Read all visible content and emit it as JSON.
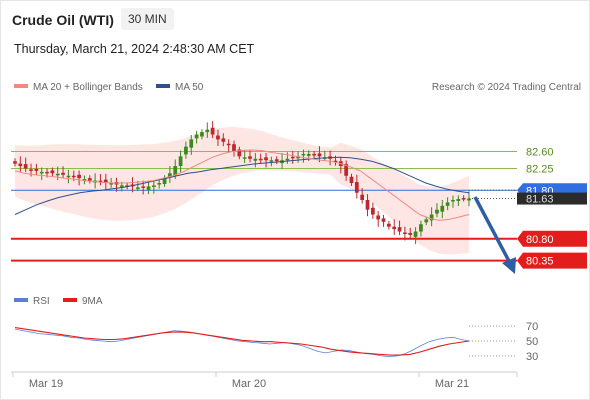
{
  "header": {
    "instrument": "Crude Oil (WTI)",
    "timeframe": "30 MIN",
    "datetime": "Thursday, March 21, 2024 2:48:30 AM CET"
  },
  "legend": {
    "ma20_label": "MA 20 + Bollinger Bands",
    "ma50_label": "MA 50",
    "credit": "Research © 2024 Trading Central",
    "rsi_label": "RSI",
    "ma9_label": "9MA"
  },
  "colors": {
    "ma20": "#f08a80",
    "ma50": "#2f4f8f",
    "bands_fill": "#fde3e1",
    "resistance": "#8abf4a",
    "current": "#2f6fe0",
    "support": "#e31c1c",
    "arrow": "#2e5fa3",
    "rsi": "#5b7fd6",
    "rsi_ma": "#e31c1c",
    "candle_up": "#3a8a1e",
    "candle_down": "#c0262b"
  },
  "chart_data": {
    "type": "candlestick",
    "x_labels": [
      "Mar 19",
      "Mar 20",
      "Mar 21"
    ],
    "y_range": [
      79.6,
      83.6
    ],
    "levels": [
      {
        "value": 82.6,
        "label": "82.60",
        "kind": "resistance"
      },
      {
        "value": 82.25,
        "label": "82.25",
        "kind": "resistance"
      },
      {
        "value": 81.8,
        "label": "81.80",
        "kind": "current"
      },
      {
        "value": 81.63,
        "label": "81.63",
        "kind": "last"
      },
      {
        "value": 80.8,
        "label": "80.80",
        "kind": "support"
      },
      {
        "value": 80.35,
        "label": "80.35",
        "kind": "support"
      }
    ],
    "closes": [
      82.35,
      82.3,
      82.25,
      82.22,
      82.2,
      82.18,
      82.17,
      82.15,
      82.14,
      82.12,
      82.1,
      82.08,
      82.05,
      82.03,
      82.0,
      82.0,
      81.98,
      81.96,
      81.95,
      81.92,
      81.9,
      81.88,
      81.88,
      81.86,
      81.85,
      81.88,
      81.9,
      81.95,
      82.05,
      82.15,
      82.3,
      82.5,
      82.7,
      82.85,
      82.95,
      83.0,
      83.05,
      82.95,
      82.85,
      82.8,
      82.75,
      82.6,
      82.5,
      82.48,
      82.45,
      82.45,
      82.44,
      82.42,
      82.42,
      82.4,
      82.42,
      82.45,
      82.48,
      82.5,
      82.55,
      82.55,
      82.52,
      82.5,
      82.48,
      82.45,
      82.4,
      82.3,
      82.1,
      81.95,
      81.75,
      81.6,
      81.4,
      81.3,
      81.2,
      81.15,
      81.05,
      81.0,
      80.95,
      80.9,
      80.88,
      80.95,
      81.1,
      81.2,
      81.3,
      81.4,
      81.48,
      81.55,
      81.6,
      81.62,
      81.63,
      81.63
    ],
    "ma20": [
      82.2,
      82.15,
      82.12,
      82.1,
      82.08,
      82.05,
      82.03,
      82.0,
      81.98,
      81.96,
      81.95,
      81.95,
      81.96,
      81.98,
      82.0,
      82.05,
      82.1,
      82.18,
      82.28,
      82.38,
      82.48,
      82.55,
      82.6,
      82.62,
      82.63,
      82.62,
      82.58,
      82.55,
      82.52,
      82.48,
      82.45,
      82.42,
      82.4,
      82.35,
      82.28,
      82.2,
      82.05,
      81.9,
      81.75,
      81.6,
      81.45,
      81.3,
      81.22,
      81.18,
      81.2,
      81.25,
      81.3
    ],
    "ma50": [
      81.3,
      81.4,
      81.5,
      81.58,
      81.65,
      81.7,
      81.75,
      81.78,
      81.8,
      81.83,
      81.86,
      81.9,
      81.95,
      82.0,
      82.05,
      82.1,
      82.15,
      82.18,
      82.22,
      82.25,
      82.28,
      82.31,
      82.34,
      82.36,
      82.38,
      82.4,
      82.42,
      82.44,
      82.46,
      82.47,
      82.48,
      82.47,
      82.44,
      82.4,
      82.33,
      82.25,
      82.15,
      82.05,
      81.95,
      81.88,
      81.82,
      81.78,
      81.75
    ],
    "rsi": [
      66,
      64,
      62,
      60,
      59,
      58,
      57,
      55,
      54,
      52,
      51,
      50,
      49,
      50,
      52,
      54,
      56,
      58,
      60,
      62,
      64,
      63,
      62,
      60,
      58,
      56,
      54,
      52,
      50,
      49,
      48,
      47,
      46,
      47,
      48,
      46,
      44,
      40,
      36,
      34,
      36,
      38,
      37,
      35,
      33,
      32,
      30,
      29,
      30,
      33,
      38,
      44,
      49,
      52,
      54,
      55,
      52,
      50
    ],
    "rsi_ma": [
      68,
      66,
      64,
      62,
      60,
      58,
      56,
      54,
      53,
      52,
      52,
      53,
      55,
      57,
      59,
      61,
      62,
      62,
      61,
      59,
      57,
      55,
      53,
      51,
      50,
      49,
      49,
      48,
      47,
      46,
      44,
      42,
      39,
      37,
      35,
      34,
      33,
      32,
      31,
      31,
      32,
      35,
      39,
      43,
      46,
      48,
      50
    ],
    "rsi_ticks": [
      70,
      50,
      30
    ],
    "rsi_range": [
      15,
      85
    ]
  }
}
